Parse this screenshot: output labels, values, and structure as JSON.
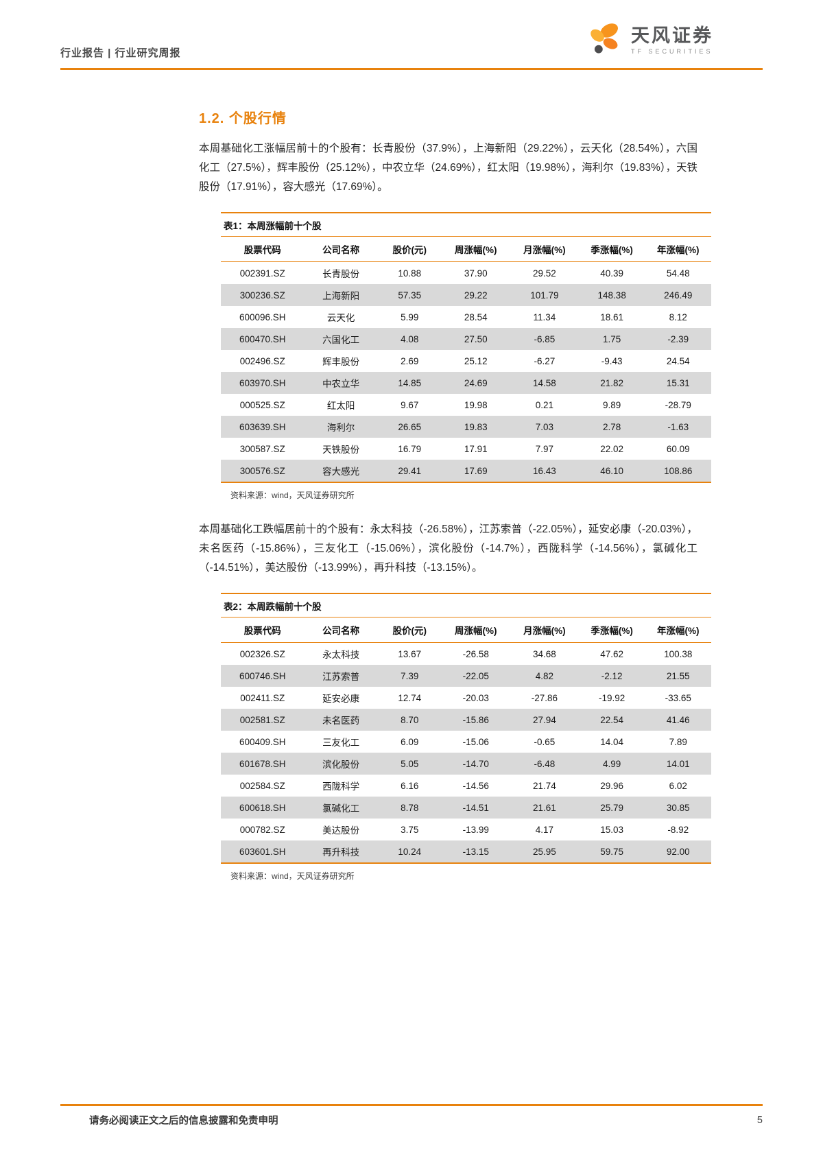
{
  "colors": {
    "accent": "#E8820D",
    "row_alt": "#D9D9D9",
    "brand_orange": "#F7941D",
    "brand_orange_light": "#FBB034",
    "brand_gray": "#4D4D4F"
  },
  "header": {
    "left": "行业报告 | 行业研究周报",
    "brand_name": "天风证券",
    "brand_sub": "TF SECURITIES"
  },
  "section": {
    "title": "1.2. 个股行情",
    "para_gainers": "本周基础化工涨幅居前十的个股有：长青股份（37.9%），上海新阳（29.22%），云天化（28.54%），六国化工（27.5%），辉丰股份（25.12%），中农立华（24.69%），红太阳（19.98%），海利尔（19.83%），天铁股份（17.91%），容大感光（17.69%）。",
    "para_losers": "本周基础化工跌幅居前十的个股有：永太科技（-26.58%），江苏索普（-22.05%），延安必康（-20.03%），未名医药（-15.86%），三友化工（-15.06%），滨化股份（-14.7%），西陇科学（-14.56%），氯碱化工（-14.51%），美达股份（-13.99%），再升科技（-13.15%）。"
  },
  "tables": [
    {
      "title": "表1：本周涨幅前十个股",
      "headers": [
        "股票代码",
        "公司名称",
        "股价(元)",
        "周涨幅(%)",
        "月涨幅(%)",
        "季涨幅(%)",
        "年涨幅(%)"
      ],
      "rows": [
        [
          "002391.SZ",
          "长青股份",
          "10.88",
          "37.90",
          "29.52",
          "40.39",
          "54.48"
        ],
        [
          "300236.SZ",
          "上海新阳",
          "57.35",
          "29.22",
          "101.79",
          "148.38",
          "246.49"
        ],
        [
          "600096.SH",
          "云天化",
          "5.99",
          "28.54",
          "11.34",
          "18.61",
          "8.12"
        ],
        [
          "600470.SH",
          "六国化工",
          "4.08",
          "27.50",
          "-6.85",
          "1.75",
          "-2.39"
        ],
        [
          "002496.SZ",
          "辉丰股份",
          "2.69",
          "25.12",
          "-6.27",
          "-9.43",
          "24.54"
        ],
        [
          "603970.SH",
          "中农立华",
          "14.85",
          "24.69",
          "14.58",
          "21.82",
          "15.31"
        ],
        [
          "000525.SZ",
          "红太阳",
          "9.67",
          "19.98",
          "0.21",
          "9.89",
          "-28.79"
        ],
        [
          "603639.SH",
          "海利尔",
          "26.65",
          "19.83",
          "7.03",
          "2.78",
          "-1.63"
        ],
        [
          "300587.SZ",
          "天铁股份",
          "16.79",
          "17.91",
          "7.97",
          "22.02",
          "60.09"
        ],
        [
          "300576.SZ",
          "容大感光",
          "29.41",
          "17.69",
          "16.43",
          "46.10",
          "108.86"
        ]
      ],
      "source": "资料来源：wind，天风证券研究所"
    },
    {
      "title": "表2：本周跌幅前十个股",
      "headers": [
        "股票代码",
        "公司名称",
        "股价(元)",
        "周涨幅(%)",
        "月涨幅(%)",
        "季涨幅(%)",
        "年涨幅(%)"
      ],
      "rows": [
        [
          "002326.SZ",
          "永太科技",
          "13.67",
          "-26.58",
          "34.68",
          "47.62",
          "100.38"
        ],
        [
          "600746.SH",
          "江苏索普",
          "7.39",
          "-22.05",
          "4.82",
          "-2.12",
          "21.55"
        ],
        [
          "002411.SZ",
          "延安必康",
          "12.74",
          "-20.03",
          "-27.86",
          "-19.92",
          "-33.65"
        ],
        [
          "002581.SZ",
          "未名医药",
          "8.70",
          "-15.86",
          "27.94",
          "22.54",
          "41.46"
        ],
        [
          "600409.SH",
          "三友化工",
          "6.09",
          "-15.06",
          "-0.65",
          "14.04",
          "7.89"
        ],
        [
          "601678.SH",
          "滨化股份",
          "5.05",
          "-14.70",
          "-6.48",
          "4.99",
          "14.01"
        ],
        [
          "002584.SZ",
          "西陇科学",
          "6.16",
          "-14.56",
          "21.74",
          "29.96",
          "6.02"
        ],
        [
          "600618.SH",
          "氯碱化工",
          "8.78",
          "-14.51",
          "21.61",
          "25.79",
          "30.85"
        ],
        [
          "000782.SZ",
          "美达股份",
          "3.75",
          "-13.99",
          "4.17",
          "15.03",
          "-8.92"
        ],
        [
          "603601.SH",
          "再升科技",
          "10.24",
          "-13.15",
          "25.95",
          "59.75",
          "92.00"
        ]
      ],
      "source": "资料来源：wind，天风证券研究所"
    }
  ],
  "footer": {
    "disclaimer": "请务必阅读正文之后的信息披露和免责申明",
    "page_number": "5"
  }
}
